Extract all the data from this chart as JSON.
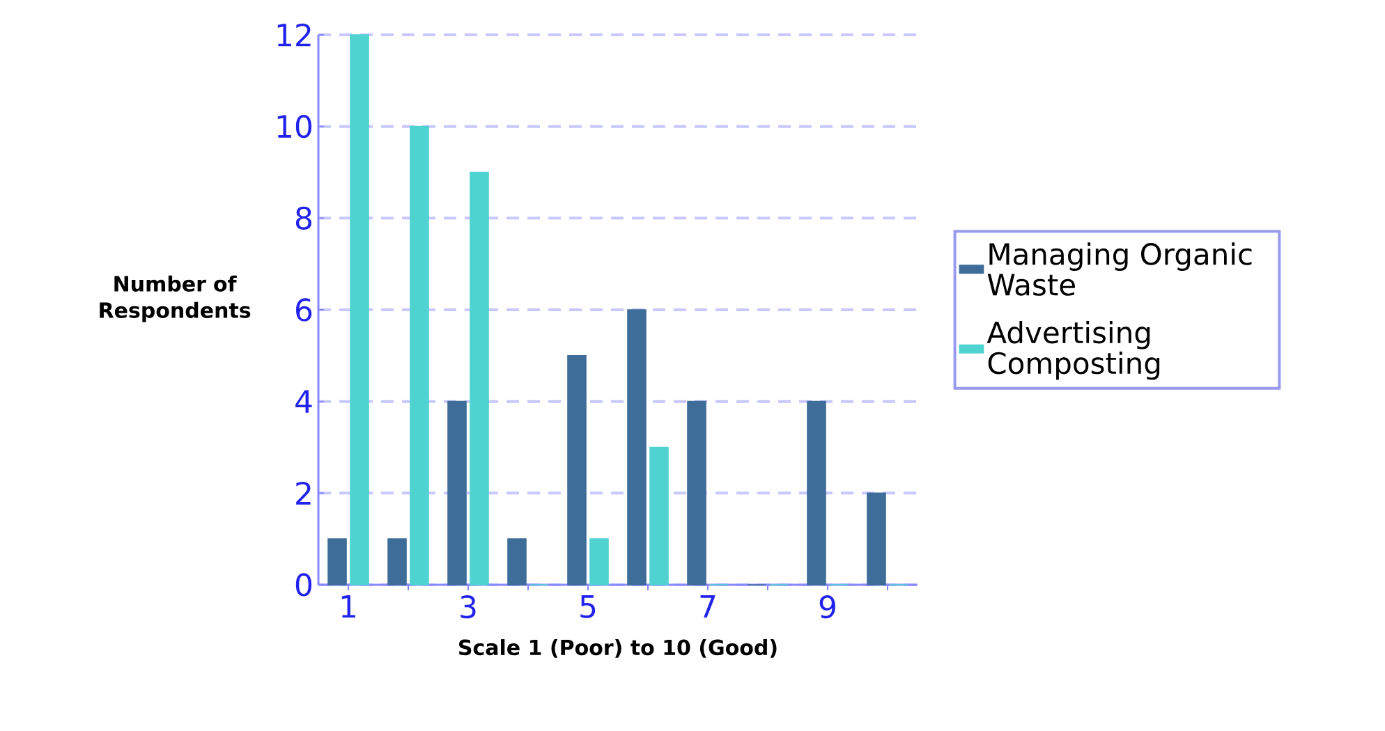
{
  "chart_data": {
    "type": "bar",
    "xlabel": "Scale 1 (Poor) to 10 (Good)",
    "ylabel": "Number of Respondents",
    "categories": [
      "1",
      null,
      "3",
      null,
      "5",
      null,
      "7",
      null,
      "9",
      null
    ],
    "series": [
      {
        "name": "Managing Organic Waste",
        "color": "#3f6d99",
        "values": [
          1,
          1,
          4,
          1,
          5,
          6,
          4,
          0,
          4,
          2
        ]
      },
      {
        "name": "Advertising Composting",
        "color": "#4fd3d0",
        "values": [
          12,
          10,
          9,
          0,
          1,
          3,
          0,
          0,
          0,
          0
        ]
      }
    ],
    "ylim": [
      0,
      12
    ],
    "yticks": [
      0,
      2,
      4,
      6,
      8,
      10,
      12
    ],
    "grid": "y",
    "legend": "right"
  }
}
